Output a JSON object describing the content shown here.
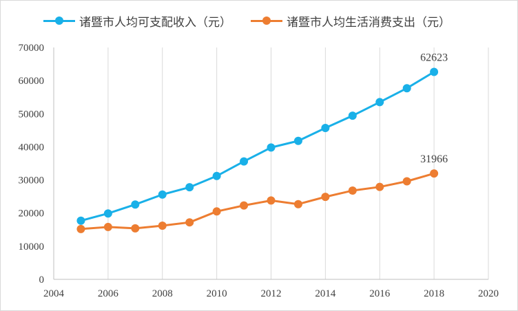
{
  "chart_data": {
    "type": "line",
    "xlim": [
      2004,
      2020
    ],
    "ylim": [
      0,
      70000
    ],
    "x_ticks": [
      "2004",
      "2006",
      "2008",
      "2010",
      "2012",
      "2014",
      "2016",
      "2018",
      "2020"
    ],
    "y_ticks": [
      "0",
      "10000",
      "20000",
      "30000",
      "40000",
      "50000",
      "60000",
      "70000"
    ],
    "grid": "vertical",
    "legend_position": "top",
    "series": [
      {
        "name": "诸暨市人均可支配收入（元）",
        "color": "#19b0e8",
        "x": [
          2005,
          2006,
          2007,
          2008,
          2009,
          2010,
          2011,
          2012,
          2013,
          2014,
          2015,
          2016,
          2017,
          2018
        ],
        "values": [
          17700,
          19900,
          22600,
          25600,
          27800,
          31200,
          35600,
          39800,
          41800,
          45700,
          49400,
          53500,
          57700,
          62623
        ],
        "end_label": "62623"
      },
      {
        "name": "诸暨市人均生活消费支出（元）",
        "color": "#ed7d31",
        "x": [
          2005,
          2006,
          2007,
          2008,
          2009,
          2010,
          2011,
          2012,
          2013,
          2014,
          2015,
          2016,
          2017,
          2018
        ],
        "values": [
          15200,
          15800,
          15400,
          16200,
          17200,
          20500,
          22300,
          23800,
          22700,
          24900,
          26800,
          27900,
          29600,
          31966
        ],
        "end_label": "31966"
      }
    ]
  }
}
